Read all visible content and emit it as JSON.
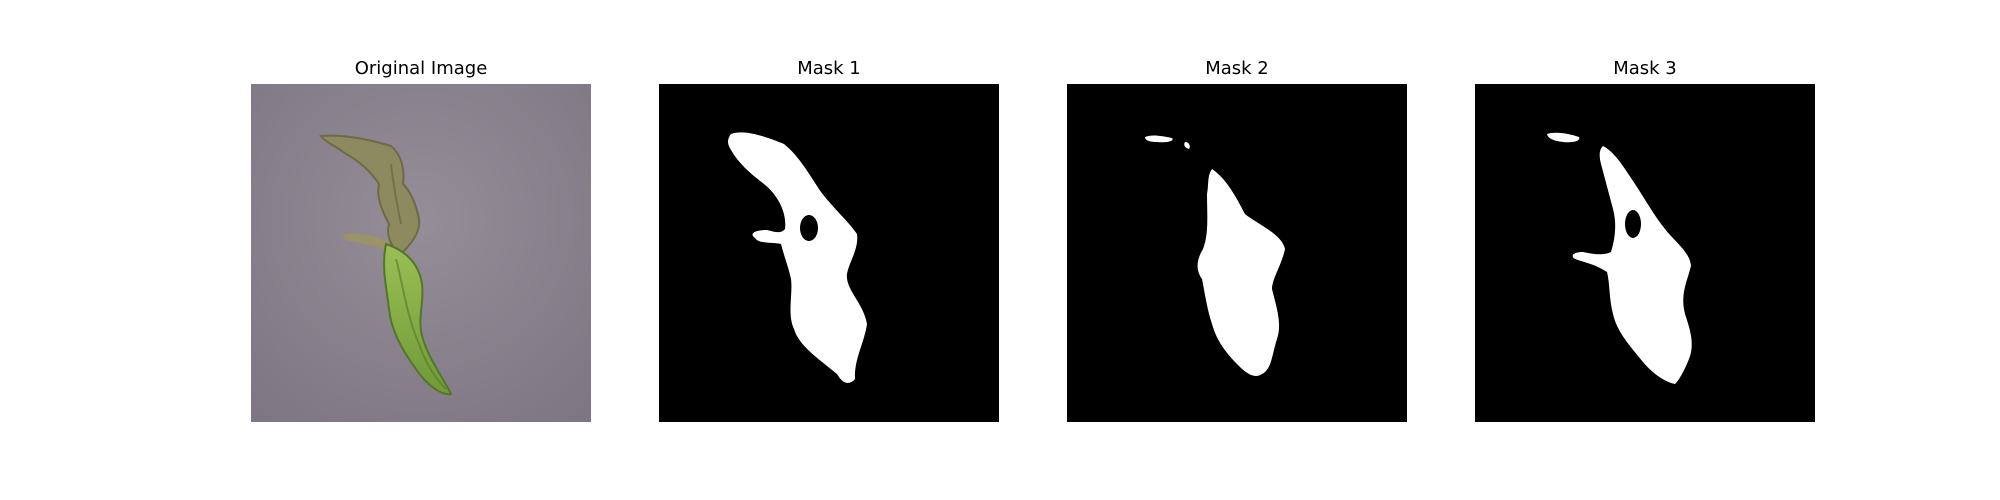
{
  "figure": {
    "background": "#ffffff",
    "panels": [
      {
        "title": "Original Image",
        "kind": "photo"
      },
      {
        "title": "Mask 1",
        "kind": "mask"
      },
      {
        "title": "Mask 2",
        "kind": "mask"
      },
      {
        "title": "Mask 3",
        "kind": "mask"
      }
    ]
  },
  "colors": {
    "photo_background": "#8d8590",
    "leaf_dry": "#8c8a5c",
    "leaf_green": "#8fb34a",
    "mask_background": "#000000",
    "mask_foreground": "#ffffff"
  }
}
